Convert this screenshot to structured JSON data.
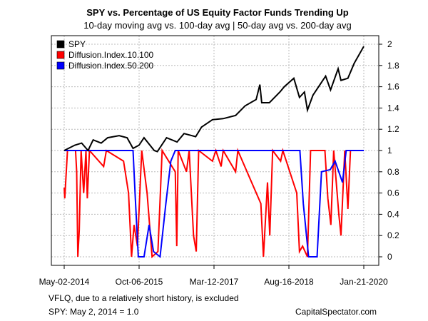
{
  "chart_data": {
    "type": "line",
    "title": "SPY vs. Percentage of US Equity Factor Funds Trending Up",
    "subtitle": "10-day moving avg vs. 100-day avg | 50-day avg vs. 200-day avg",
    "xlabel": "",
    "ylabel": "",
    "x_ticks": [
      "May-02-2014",
      "Oct-06-2015",
      "Mar-12-2017",
      "Aug-16-2018",
      "Jan-21-2020"
    ],
    "y_ticks": [
      "0",
      "0.2",
      "0.4",
      "0.6",
      "0.8",
      "1",
      "1.2",
      "1.4",
      "1.6",
      "1.8",
      "2"
    ],
    "ylim": [
      0,
      2
    ],
    "xlim": [
      "2014-05-02",
      "2020-01-21"
    ],
    "grid": true,
    "y_axis_side": "right",
    "legend_position": "top-left",
    "series": [
      {
        "name": "SPY",
        "color": "#000000",
        "points": [
          [
            "2014-05-02",
            1.0
          ],
          [
            "2014-07-15",
            1.05
          ],
          [
            "2014-09-01",
            1.07
          ],
          [
            "2014-10-15",
            1.0
          ],
          [
            "2014-11-20",
            1.1
          ],
          [
            "2015-01-15",
            1.07
          ],
          [
            "2015-03-01",
            1.12
          ],
          [
            "2015-05-20",
            1.14
          ],
          [
            "2015-07-15",
            1.12
          ],
          [
            "2015-08-25",
            1.02
          ],
          [
            "2015-10-06",
            1.05
          ],
          [
            "2015-11-10",
            1.12
          ],
          [
            "2016-01-20",
            1.0
          ],
          [
            "2016-02-11",
            0.99
          ],
          [
            "2016-04-15",
            1.12
          ],
          [
            "2016-06-27",
            1.08
          ],
          [
            "2016-08-15",
            1.16
          ],
          [
            "2016-11-04",
            1.13
          ],
          [
            "2016-12-15",
            1.22
          ],
          [
            "2017-03-01",
            1.29
          ],
          [
            "2017-05-15",
            1.3
          ],
          [
            "2017-08-10",
            1.33
          ],
          [
            "2017-10-15",
            1.42
          ],
          [
            "2017-12-31",
            1.48
          ],
          [
            "2018-01-26",
            1.62
          ],
          [
            "2018-02-08",
            1.45
          ],
          [
            "2018-04-02",
            1.45
          ],
          [
            "2018-06-15",
            1.55
          ],
          [
            "2018-07-15",
            1.6
          ],
          [
            "2018-09-20",
            1.68
          ],
          [
            "2018-10-29",
            1.5
          ],
          [
            "2018-12-03",
            1.55
          ],
          [
            "2018-12-24",
            1.38
          ],
          [
            "2019-01-31",
            1.52
          ],
          [
            "2019-04-30",
            1.7
          ],
          [
            "2019-06-03",
            1.57
          ],
          [
            "2019-07-26",
            1.77
          ],
          [
            "2019-08-15",
            1.66
          ],
          [
            "2019-10-02",
            1.68
          ],
          [
            "2019-11-15",
            1.82
          ],
          [
            "2020-01-21",
            1.98
          ]
        ]
      },
      {
        "name": "Diffusion.Index.10.100",
        "color": "#ff0000",
        "points": [
          [
            "2014-05-02",
            0.65
          ],
          [
            "2014-05-06",
            0.55
          ],
          [
            "2014-05-25",
            1.0
          ],
          [
            "2014-07-20",
            1.0
          ],
          [
            "2014-07-28",
            0.8
          ],
          [
            "2014-08-05",
            0.0
          ],
          [
            "2014-08-15",
            0.25
          ],
          [
            "2014-08-28",
            1.0
          ],
          [
            "2014-09-15",
            0.6
          ],
          [
            "2014-10-01",
            1.0
          ],
          [
            "2014-10-10",
            0.55
          ],
          [
            "2014-10-25",
            1.0
          ],
          [
            "2015-02-01",
            0.85
          ],
          [
            "2015-02-20",
            1.0
          ],
          [
            "2015-06-20",
            0.9
          ],
          [
            "2015-07-25",
            0.6
          ],
          [
            "2015-08-15",
            0.0
          ],
          [
            "2015-09-01",
            0.3
          ],
          [
            "2015-09-25",
            0.1
          ],
          [
            "2015-10-25",
            1.0
          ],
          [
            "2015-12-01",
            0.6
          ],
          [
            "2016-01-05",
            0.0
          ],
          [
            "2016-02-15",
            0.05
          ],
          [
            "2016-03-15",
            1.0
          ],
          [
            "2016-06-15",
            0.8
          ],
          [
            "2016-06-25",
            0.1
          ],
          [
            "2016-07-05",
            1.0
          ],
          [
            "2016-09-01",
            0.8
          ],
          [
            "2016-09-20",
            1.0
          ],
          [
            "2016-10-20",
            0.2
          ],
          [
            "2016-11-08",
            0.05
          ],
          [
            "2016-11-25",
            1.0
          ],
          [
            "2017-03-01",
            0.9
          ],
          [
            "2017-03-25",
            1.0
          ],
          [
            "2017-05-01",
            0.85
          ],
          [
            "2017-05-15",
            1.0
          ],
          [
            "2017-08-10",
            0.8
          ],
          [
            "2017-08-25",
            1.0
          ],
          [
            "2018-02-02",
            0.5
          ],
          [
            "2018-02-20",
            0.0
          ],
          [
            "2018-03-20",
            0.7
          ],
          [
            "2018-04-05",
            0.2
          ],
          [
            "2018-04-25",
            1.0
          ],
          [
            "2018-06-20",
            0.9
          ],
          [
            "2018-07-05",
            1.0
          ],
          [
            "2018-10-10",
            0.6
          ],
          [
            "2018-10-29",
            0.05
          ],
          [
            "2018-11-20",
            0.1
          ],
          [
            "2018-12-24",
            0.0
          ],
          [
            "2019-01-15",
            1.0
          ],
          [
            "2019-04-25",
            1.0
          ],
          [
            "2019-05-15",
            0.55
          ],
          [
            "2019-06-05",
            0.3
          ],
          [
            "2019-06-25",
            1.0
          ],
          [
            "2019-07-31",
            0.4
          ],
          [
            "2019-08-15",
            0.2
          ],
          [
            "2019-09-10",
            1.0
          ],
          [
            "2019-10-02",
            0.45
          ],
          [
            "2019-10-20",
            1.0
          ],
          [
            "2020-01-21",
            1.0
          ]
        ]
      },
      {
        "name": "Diffusion.Index.50.200",
        "color": "#0000ff",
        "points": [
          [
            "2014-05-02",
            1.0
          ],
          [
            "2015-08-25",
            1.0
          ],
          [
            "2015-09-10",
            0.55
          ],
          [
            "2015-10-01",
            0.0
          ],
          [
            "2015-11-10",
            0.0
          ],
          [
            "2015-12-15",
            0.3
          ],
          [
            "2016-01-15",
            0.05
          ],
          [
            "2016-03-01",
            0.0
          ],
          [
            "2016-04-10",
            0.5
          ],
          [
            "2016-05-15",
            0.9
          ],
          [
            "2016-06-15",
            1.0
          ],
          [
            "2018-11-01",
            1.0
          ],
          [
            "2018-11-25",
            0.5
          ],
          [
            "2019-01-01",
            0.0
          ],
          [
            "2019-03-01",
            0.0
          ],
          [
            "2019-04-01",
            0.8
          ],
          [
            "2019-06-01",
            0.82
          ],
          [
            "2019-07-05",
            0.9
          ],
          [
            "2019-08-25",
            0.7
          ],
          [
            "2019-09-20",
            1.0
          ],
          [
            "2020-01-21",
            1.0
          ]
        ]
      }
    ]
  },
  "footer": {
    "note": "VFLQ, due to a  relatively short history, is excluded",
    "base_note": "SPY: May 2, 2014 = 1.0",
    "source": "CapitalSpectator.com"
  }
}
